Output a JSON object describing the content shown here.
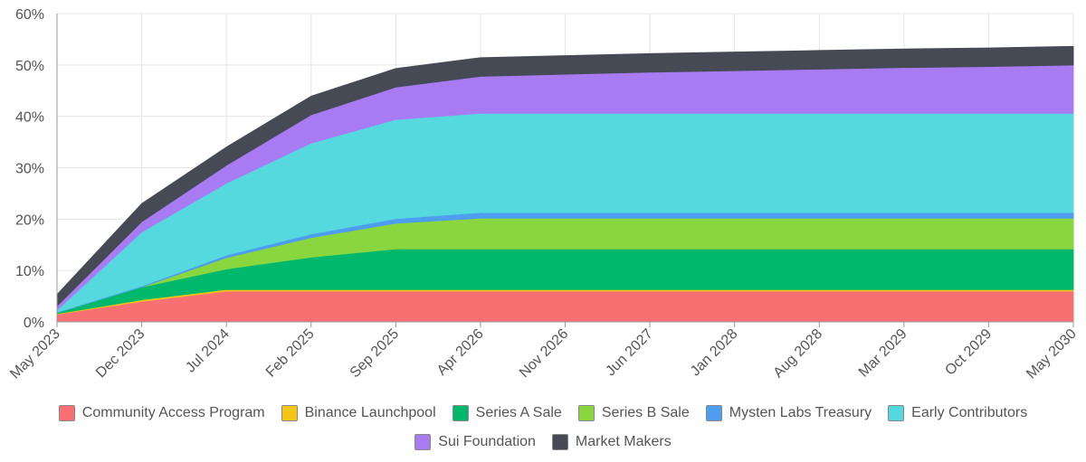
{
  "chart_data": {
    "type": "area",
    "stacked": true,
    "x": [
      "May 2023",
      "Dec 2023",
      "Jul 2024",
      "Feb 2025",
      "Sep 2025",
      "Apr 2026",
      "Nov 2026",
      "Jun 2027",
      "Jan 2028",
      "Aug 2028",
      "Mar 2029",
      "Oct 2029",
      "May 2030"
    ],
    "y_tick_labels": [
      "0%",
      "10%",
      "20%",
      "30%",
      "40%",
      "50%",
      "60%"
    ],
    "ylim": [
      0,
      60
    ],
    "title": "",
    "xlabel": "",
    "ylabel": "",
    "grid": true,
    "legend_position": "bottom",
    "series": [
      {
        "name": "Community Access Program",
        "color": "#f87072",
        "values": [
          1.5,
          4.0,
          6.0,
          6.0,
          6.0,
          6.0,
          6.0,
          6.0,
          6.0,
          6.0,
          6.0,
          6.0,
          6.0
        ]
      },
      {
        "name": "Binance Launchpool",
        "color": "#f5c518",
        "values": [
          0.1,
          0.3,
          0.3,
          0.3,
          0.3,
          0.3,
          0.3,
          0.3,
          0.3,
          0.3,
          0.3,
          0.3,
          0.3
        ]
      },
      {
        "name": "Series A Sale",
        "color": "#00b86b",
        "values": [
          0.2,
          2.5,
          4.0,
          6.3,
          7.9,
          7.9,
          7.9,
          7.9,
          7.9,
          7.9,
          7.9,
          7.9,
          7.9
        ]
      },
      {
        "name": "Series B Sale",
        "color": "#8ad63e",
        "values": [
          0.0,
          0.0,
          2.2,
          3.8,
          5.0,
          6.0,
          6.0,
          6.0,
          6.0,
          6.0,
          6.0,
          6.0,
          6.0
        ]
      },
      {
        "name": "Mysten Labs Treasury",
        "color": "#4d9df0",
        "values": [
          0.1,
          0.2,
          0.5,
          0.7,
          0.9,
          1.1,
          1.1,
          1.1,
          1.1,
          1.1,
          1.1,
          1.1,
          1.1
        ]
      },
      {
        "name": "Early Contributors",
        "color": "#55d9df",
        "values": [
          0.4,
          10.5,
          14.0,
          17.7,
          19.3,
          19.3,
          19.3,
          19.3,
          19.3,
          19.3,
          19.3,
          19.3,
          19.3
        ]
      },
      {
        "name": "Sui Foundation",
        "color": "#a97bf3",
        "values": [
          0.8,
          2.0,
          3.5,
          5.5,
          6.3,
          7.2,
          7.6,
          8.0,
          8.3,
          8.6,
          8.9,
          9.1,
          9.4
        ]
      },
      {
        "name": "Market Makers",
        "color": "#454a55",
        "values": [
          2.2,
          3.5,
          3.5,
          3.6,
          3.6,
          3.6,
          3.6,
          3.6,
          3.6,
          3.6,
          3.6,
          3.6,
          3.6
        ]
      }
    ]
  }
}
